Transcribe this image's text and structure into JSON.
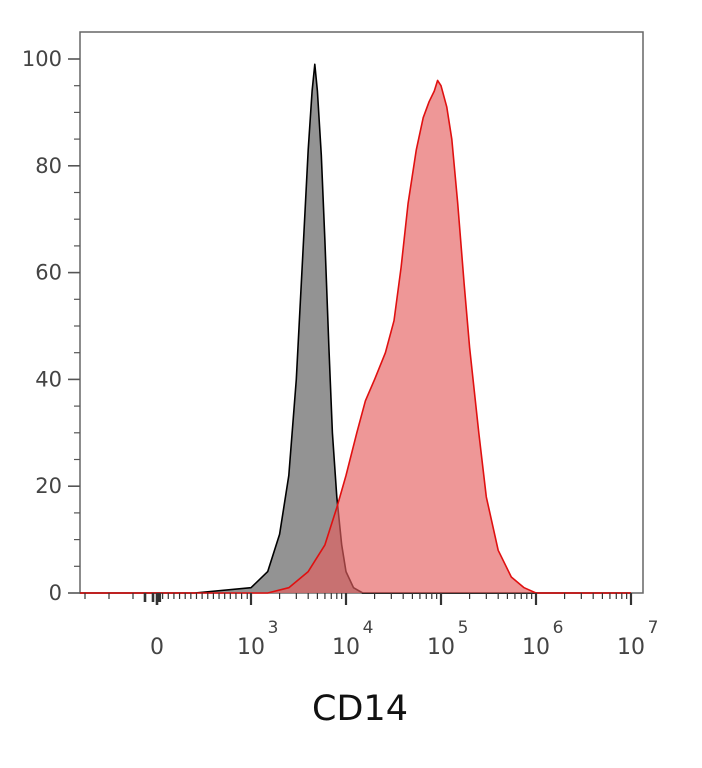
{
  "chart_data": {
    "type": "area",
    "title": "",
    "xlabel": "CD14",
    "ylabel": "",
    "x_scale": "biexponential",
    "xlim": [
      -200,
      10000000
    ],
    "ylim": [
      0,
      100
    ],
    "grid": false,
    "y_ticks": [
      0,
      20,
      40,
      60,
      80,
      100
    ],
    "x_ticks": [
      {
        "value": 0,
        "base": "0",
        "exp": ""
      },
      {
        "value": 1000,
        "base": "10",
        "exp": "3"
      },
      {
        "value": 10000,
        "base": "10",
        "exp": "4"
      },
      {
        "value": 100000,
        "base": "10",
        "exp": "5"
      },
      {
        "value": 1000000,
        "base": "10",
        "exp": "6"
      },
      {
        "value": 10000000,
        "base": "10",
        "exp": "7"
      }
    ],
    "series": [
      {
        "color": "#000000",
        "fill": "#808080",
        "fill_opacity": 0.85,
        "points": [
          [
            -200,
            0
          ],
          [
            400,
            0
          ],
          [
            1000,
            1
          ],
          [
            1500,
            4
          ],
          [
            2000,
            11
          ],
          [
            2500,
            22
          ],
          [
            3000,
            40
          ],
          [
            3500,
            63
          ],
          [
            4000,
            83
          ],
          [
            4400,
            94
          ],
          [
            4700,
            99
          ],
          [
            5000,
            94
          ],
          [
            5500,
            82
          ],
          [
            6000,
            66
          ],
          [
            6600,
            46
          ],
          [
            7200,
            30
          ],
          [
            8000,
            18
          ],
          [
            9000,
            9
          ],
          [
            10000,
            4
          ],
          [
            12000,
            1
          ],
          [
            15000,
            0
          ],
          [
            10000000,
            0
          ]
        ]
      },
      {
        "color": "#e01010",
        "fill": "#e56060",
        "fill_opacity": 0.65,
        "points": [
          [
            -200,
            0
          ],
          [
            1500,
            0
          ],
          [
            2500,
            1
          ],
          [
            4000,
            4
          ],
          [
            6000,
            9
          ],
          [
            8000,
            16
          ],
          [
            10000,
            22
          ],
          [
            13000,
            30
          ],
          [
            16000,
            36
          ],
          [
            20000,
            40
          ],
          [
            26000,
            45
          ],
          [
            32000,
            51
          ],
          [
            38000,
            61
          ],
          [
            45000,
            73
          ],
          [
            55000,
            83
          ],
          [
            65000,
            89
          ],
          [
            75000,
            92
          ],
          [
            85000,
            94
          ],
          [
            92000,
            96
          ],
          [
            100000,
            95
          ],
          [
            115000,
            91
          ],
          [
            130000,
            85
          ],
          [
            150000,
            73
          ],
          [
            175000,
            58
          ],
          [
            200000,
            46
          ],
          [
            250000,
            30
          ],
          [
            300000,
            18
          ],
          [
            400000,
            8
          ],
          [
            550000,
            3
          ],
          [
            750000,
            1
          ],
          [
            1000000,
            0
          ],
          [
            10000000,
            0
          ]
        ]
      }
    ]
  }
}
